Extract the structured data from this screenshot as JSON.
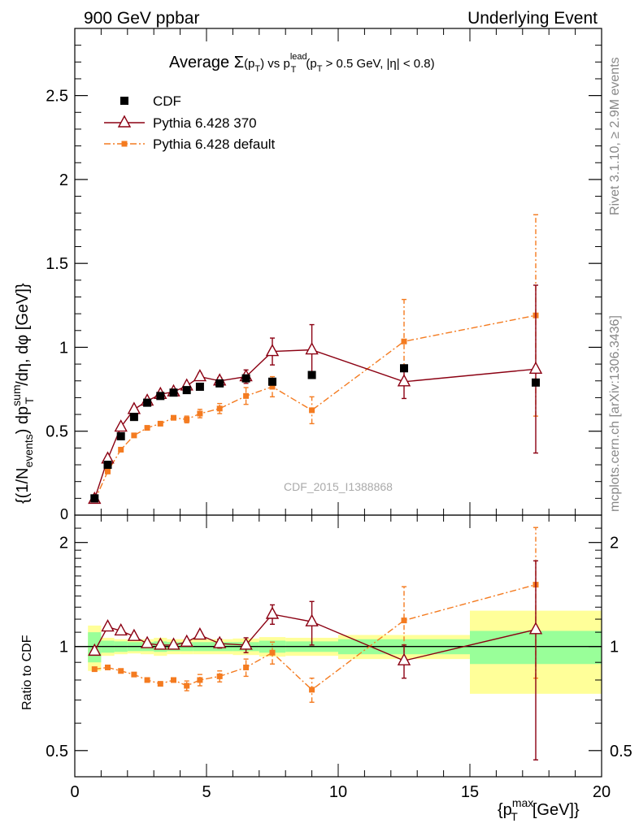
{
  "header": {
    "left": "900 GeV ppbar",
    "right": "Underlying Event"
  },
  "side": {
    "rivet": "Rivet 3.1.10, ≥ 2.9M events",
    "mcplots": "mcplots.cern.ch [arXiv:1306.3436]"
  },
  "watermark": "CDF_2015_I1388868",
  "chart_data": [
    {
      "type": "scatter",
      "title": "Average Σ(p_T) vs p_T^lead (p_T > 0.5 GeV, |η| < 0.8)",
      "xlabel": "{p_T^max [GeV]}",
      "ylabel": "{(1/N_events) dp_T^sum/dη, dφ [GeV]}",
      "xlim": [
        0,
        20
      ],
      "ylim": [
        0,
        2.9
      ],
      "yticks": [
        "0.5",
        "1",
        "1.5",
        "2",
        "2.5"
      ],
      "ytick_values": [
        0.5,
        1,
        1.5,
        2,
        2.5
      ],
      "legend_position": "top-left",
      "series": [
        {
          "name": "CDF",
          "style": "square-marker",
          "color": "#000000",
          "x": [
            0.75,
            1.25,
            1.75,
            2.25,
            2.75,
            3.25,
            3.75,
            4.25,
            4.75,
            5.5,
            6.5,
            7.5,
            9.0,
            12.5,
            17.5
          ],
          "y": [
            0.1,
            0.3,
            0.47,
            0.585,
            0.67,
            0.71,
            0.73,
            0.745,
            0.765,
            0.785,
            0.815,
            0.795,
            0.835,
            0.875,
            0.79
          ]
        },
        {
          "name": "Pythia 6.428 370",
          "style": "open-triangle-line",
          "color": "#8b0012",
          "x": [
            0.75,
            1.25,
            1.75,
            2.25,
            2.75,
            3.25,
            3.75,
            4.25,
            4.75,
            5.5,
            6.5,
            7.5,
            9.0,
            12.5,
            17.5
          ],
          "y": [
            0.095,
            0.335,
            0.525,
            0.63,
            0.68,
            0.72,
            0.735,
            0.77,
            0.825,
            0.8,
            0.825,
            0.975,
            0.985,
            0.795,
            0.87
          ],
          "err": [
            0.008,
            0.01,
            0.01,
            0.01,
            0.01,
            0.01,
            0.01,
            0.012,
            0.02,
            0.02,
            0.04,
            0.08,
            0.15,
            0.1,
            0.5
          ]
        },
        {
          "name": "Pythia 6.428 default",
          "style": "small-square-dashdot",
          "color": "#f47b20",
          "x": [
            0.75,
            1.25,
            1.75,
            2.25,
            2.75,
            3.25,
            3.75,
            4.25,
            4.75,
            5.5,
            6.5,
            7.5,
            9.0,
            12.5,
            17.5
          ],
          "y": [
            0.085,
            0.26,
            0.39,
            0.475,
            0.52,
            0.545,
            0.58,
            0.57,
            0.605,
            0.635,
            0.71,
            0.765,
            0.625,
            1.035,
            1.19
          ],
          "err": [
            0.005,
            0.008,
            0.008,
            0.01,
            0.01,
            0.01,
            0.012,
            0.02,
            0.025,
            0.03,
            0.05,
            0.06,
            0.08,
            0.25,
            0.6
          ]
        }
      ]
    },
    {
      "type": "scatter",
      "xlabel": "{p_T^max [GeV]}",
      "ylabel": "Ratio to CDF",
      "xlim": [
        0,
        20
      ],
      "ylim": [
        0.42,
        2.4
      ],
      "log_y": true,
      "xticks": [
        "0",
        "5",
        "10",
        "15",
        "20"
      ],
      "xtick_values": [
        0,
        5,
        10,
        15,
        20
      ],
      "yticks": [
        "0.5",
        "1",
        "2"
      ],
      "ytick_values": [
        0.5,
        1,
        2
      ],
      "bands": {
        "x_edges": [
          0.5,
          1.0,
          1.5,
          2.0,
          2.5,
          3.0,
          3.5,
          4.0,
          4.5,
          5.0,
          6.0,
          7.0,
          8.0,
          10.0,
          15.0,
          20.0
        ],
        "green": [
          0.1,
          0.04,
          0.035,
          0.03,
          0.03,
          0.035,
          0.03,
          0.03,
          0.03,
          0.03,
          0.03,
          0.04,
          0.035,
          0.05,
          0.11
        ],
        "yellow": [
          0.15,
          0.06,
          0.05,
          0.045,
          0.05,
          0.06,
          0.05,
          0.05,
          0.05,
          0.05,
          0.055,
          0.065,
          0.06,
          0.08,
          0.27
        ]
      },
      "series": [
        {
          "name": "Pythia 6.428 370",
          "color": "#8b0012",
          "x": [
            0.75,
            1.25,
            1.75,
            2.25,
            2.75,
            3.25,
            3.75,
            4.25,
            4.75,
            5.5,
            6.5,
            7.5,
            9.0,
            12.5,
            17.5
          ],
          "y": [
            0.97,
            1.14,
            1.11,
            1.07,
            1.02,
            1.01,
            1.01,
            1.03,
            1.08,
            1.02,
            1.01,
            1.24,
            1.18,
            0.91,
            1.12
          ],
          "err": [
            0.02,
            0.015,
            0.015,
            0.015,
            0.015,
            0.015,
            0.015,
            0.02,
            0.02,
            0.03,
            0.05,
            0.08,
            0.17,
            0.1,
            0.65
          ]
        },
        {
          "name": "Pythia 6.428 default",
          "color": "#f47b20",
          "x": [
            0.75,
            1.25,
            1.75,
            2.25,
            2.75,
            3.25,
            3.75,
            4.25,
            4.75,
            5.5,
            6.5,
            7.5,
            9.0,
            12.5,
            17.5
          ],
          "y": [
            0.86,
            0.87,
            0.85,
            0.83,
            0.8,
            0.78,
            0.8,
            0.77,
            0.8,
            0.82,
            0.87,
            0.96,
            0.75,
            1.19,
            1.51
          ],
          "err": [
            0.01,
            0.01,
            0.01,
            0.01,
            0.01,
            0.01,
            0.012,
            0.025,
            0.03,
            0.03,
            0.05,
            0.07,
            0.06,
            0.3,
            0.7
          ]
        }
      ]
    }
  ]
}
